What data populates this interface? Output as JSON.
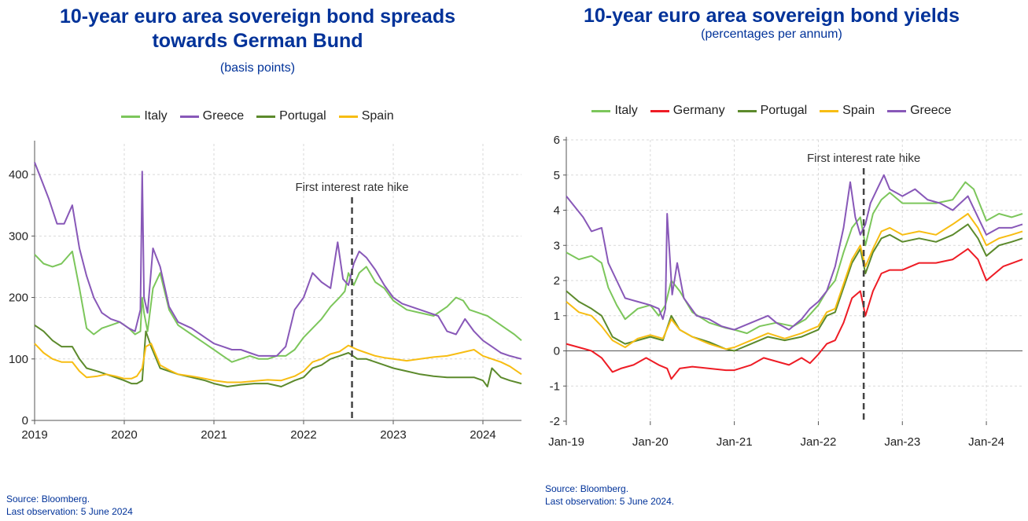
{
  "colors": {
    "Italy": "#7cc65b",
    "Greece": "#8858b8",
    "Portugal": "#5c8a2c",
    "Spain": "#f7bd13",
    "Germany": "#ee1c25"
  },
  "chart_data": [
    {
      "type": "line",
      "title": "10-year euro area sovereign bond spreads towards German Bund",
      "title_lines": [
        "10-year euro area sovereign bond spreads",
        "towards German Bund"
      ],
      "subtitle": "(basis points)",
      "xlabel": "",
      "ylabel": "",
      "xlim": [
        2019.0,
        2024.43
      ],
      "ylim": [
        0,
        450
      ],
      "yticks": [
        0,
        100,
        200,
        300,
        400
      ],
      "xticks": [
        {
          "value": 2019,
          "label": "2019"
        },
        {
          "value": 2020,
          "label": "2020"
        },
        {
          "value": 2021,
          "label": "2021"
        },
        {
          "value": 2022,
          "label": "2022"
        },
        {
          "value": 2023,
          "label": "2023"
        },
        {
          "value": 2024,
          "label": "2024"
        }
      ],
      "grid": true,
      "legend_position": "top",
      "annotation": {
        "x": 2022.54,
        "label": "First interest rate hike"
      },
      "series": [
        {
          "name": "Italy",
          "x": [
            2019.0,
            2019.1,
            2019.2,
            2019.3,
            2019.42,
            2019.5,
            2019.58,
            2019.66,
            2019.75,
            2019.85,
            2019.95,
            2020.05,
            2020.12,
            2020.18,
            2020.2,
            2020.22,
            2020.26,
            2020.32,
            2020.4,
            2020.5,
            2020.6,
            2020.75,
            2020.9,
            2021.0,
            2021.1,
            2021.2,
            2021.3,
            2021.4,
            2021.5,
            2021.6,
            2021.7,
            2021.8,
            2021.9,
            2022.0,
            2022.1,
            2022.2,
            2022.3,
            2022.4,
            2022.46,
            2022.5,
            2022.56,
            2022.62,
            2022.7,
            2022.8,
            2022.9,
            2023.0,
            2023.15,
            2023.3,
            2023.45,
            2023.6,
            2023.7,
            2023.78,
            2023.85,
            2023.95,
            2024.05,
            2024.15,
            2024.25,
            2024.35,
            2024.43
          ],
          "values": [
            270,
            255,
            250,
            255,
            275,
            215,
            150,
            140,
            150,
            155,
            160,
            150,
            140,
            145,
            200,
            175,
            145,
            215,
            240,
            180,
            155,
            140,
            125,
            115,
            105,
            95,
            100,
            105,
            100,
            100,
            105,
            105,
            115,
            135,
            150,
            165,
            185,
            200,
            210,
            240,
            220,
            240,
            250,
            225,
            215,
            195,
            180,
            175,
            170,
            185,
            200,
            195,
            180,
            175,
            170,
            160,
            150,
            140,
            130
          ]
        },
        {
          "name": "Greece",
          "x": [
            2019.0,
            2019.08,
            2019.16,
            2019.25,
            2019.33,
            2019.42,
            2019.5,
            2019.58,
            2019.66,
            2019.75,
            2019.85,
            2019.95,
            2020.05,
            2020.12,
            2020.18,
            2020.2,
            2020.22,
            2020.26,
            2020.32,
            2020.4,
            2020.5,
            2020.6,
            2020.75,
            2020.9,
            2021.0,
            2021.1,
            2021.2,
            2021.3,
            2021.4,
            2021.5,
            2021.6,
            2021.7,
            2021.8,
            2021.9,
            2022.0,
            2022.1,
            2022.2,
            2022.3,
            2022.38,
            2022.44,
            2022.5,
            2022.56,
            2022.62,
            2022.7,
            2022.8,
            2022.9,
            2023.0,
            2023.1,
            2023.2,
            2023.3,
            2023.4,
            2023.5,
            2023.6,
            2023.7,
            2023.8,
            2023.9,
            2024.0,
            2024.1,
            2024.2,
            2024.3,
            2024.43
          ],
          "values": [
            420,
            390,
            360,
            320,
            320,
            350,
            280,
            235,
            200,
            175,
            165,
            160,
            150,
            145,
            180,
            405,
            200,
            175,
            280,
            250,
            185,
            160,
            150,
            135,
            125,
            120,
            115,
            115,
            110,
            105,
            105,
            105,
            120,
            180,
            200,
            240,
            225,
            215,
            290,
            230,
            220,
            255,
            275,
            265,
            245,
            220,
            200,
            190,
            185,
            180,
            175,
            170,
            145,
            140,
            165,
            145,
            130,
            120,
            110,
            105,
            100
          ]
        },
        {
          "name": "Portugal",
          "x": [
            2019.0,
            2019.1,
            2019.2,
            2019.3,
            2019.42,
            2019.5,
            2019.58,
            2019.7,
            2019.8,
            2019.9,
            2020.0,
            2020.08,
            2020.14,
            2020.2,
            2020.24,
            2020.3,
            2020.4,
            2020.5,
            2020.6,
            2020.75,
            2020.9,
            2021.0,
            2021.15,
            2021.3,
            2021.45,
            2021.6,
            2021.75,
            2021.9,
            2022.0,
            2022.1,
            2022.2,
            2022.3,
            2022.4,
            2022.5,
            2022.6,
            2022.7,
            2022.8,
            2022.9,
            2023.0,
            2023.15,
            2023.3,
            2023.45,
            2023.6,
            2023.75,
            2023.9,
            2024.0,
            2024.05,
            2024.1,
            2024.2,
            2024.3,
            2024.43
          ],
          "values": [
            155,
            145,
            130,
            120,
            120,
            100,
            85,
            80,
            75,
            70,
            65,
            60,
            60,
            65,
            145,
            120,
            85,
            80,
            75,
            70,
            65,
            60,
            55,
            58,
            60,
            60,
            55,
            65,
            70,
            85,
            90,
            100,
            105,
            110,
            100,
            100,
            95,
            90,
            85,
            80,
            75,
            72,
            70,
            70,
            70,
            65,
            55,
            85,
            70,
            65,
            60
          ]
        },
        {
          "name": "Spain",
          "x": [
            2019.0,
            2019.1,
            2019.2,
            2019.3,
            2019.42,
            2019.5,
            2019.58,
            2019.7,
            2019.8,
            2019.9,
            2020.0,
            2020.08,
            2020.14,
            2020.2,
            2020.24,
            2020.3,
            2020.4,
            2020.5,
            2020.6,
            2020.75,
            2020.9,
            2021.0,
            2021.15,
            2021.3,
            2021.45,
            2021.6,
            2021.75,
            2021.9,
            2022.0,
            2022.1,
            2022.2,
            2022.3,
            2022.4,
            2022.5,
            2022.6,
            2022.7,
            2022.8,
            2022.9,
            2023.0,
            2023.15,
            2023.3,
            2023.45,
            2023.6,
            2023.75,
            2023.9,
            2024.0,
            2024.1,
            2024.2,
            2024.3,
            2024.43
          ],
          "values": [
            125,
            110,
            100,
            95,
            95,
            80,
            70,
            72,
            75,
            72,
            68,
            68,
            72,
            85,
            120,
            125,
            90,
            82,
            75,
            72,
            68,
            65,
            62,
            62,
            64,
            66,
            65,
            72,
            80,
            95,
            100,
            108,
            112,
            122,
            115,
            110,
            105,
            102,
            100,
            97,
            100,
            103,
            105,
            110,
            115,
            105,
            100,
            95,
            88,
            75
          ]
        }
      ]
    },
    {
      "type": "line",
      "title": "10-year euro area sovereign bond yields",
      "subtitle": "(percentages per annum)",
      "xlabel": "",
      "ylabel": "",
      "xlim": [
        2019.0,
        2024.43
      ],
      "ylim": [
        -2,
        6
      ],
      "yticks": [
        -2,
        -1,
        0,
        1,
        2,
        3,
        4,
        5,
        6
      ],
      "xticks": [
        {
          "value": 2019,
          "label": "Jan-19"
        },
        {
          "value": 2020,
          "label": "Jan-20"
        },
        {
          "value": 2021,
          "label": "Jan-21"
        },
        {
          "value": 2022,
          "label": "Jan-22"
        },
        {
          "value": 2023,
          "label": "Jan-23"
        },
        {
          "value": 2024,
          "label": "Jan-24"
        }
      ],
      "grid": true,
      "legend_position": "top",
      "annotation": {
        "x": 2022.54,
        "label": "First interest rate hike"
      },
      "series": [
        {
          "name": "Italy",
          "x": [
            2019.0,
            2019.15,
            2019.3,
            2019.42,
            2019.5,
            2019.6,
            2019.7,
            2019.85,
            2020.0,
            2020.1,
            2020.18,
            2020.25,
            2020.35,
            2020.5,
            2020.7,
            2020.9,
            2021.0,
            2021.15,
            2021.3,
            2021.5,
            2021.7,
            2021.85,
            2022.0,
            2022.1,
            2022.2,
            2022.3,
            2022.4,
            2022.5,
            2022.56,
            2022.65,
            2022.75,
            2022.85,
            2023.0,
            2023.2,
            2023.4,
            2023.6,
            2023.75,
            2023.85,
            2024.0,
            2024.15,
            2024.3,
            2024.43
          ],
          "values": [
            2.8,
            2.6,
            2.7,
            2.5,
            1.8,
            1.3,
            0.9,
            1.2,
            1.3,
            1.0,
            1.3,
            2.0,
            1.7,
            1.1,
            0.8,
            0.65,
            0.6,
            0.5,
            0.7,
            0.8,
            0.7,
            0.9,
            1.3,
            1.7,
            2.0,
            2.8,
            3.5,
            3.8,
            3.0,
            3.9,
            4.3,
            4.5,
            4.2,
            4.2,
            4.2,
            4.3,
            4.8,
            4.6,
            3.7,
            3.9,
            3.8,
            3.9
          ]
        },
        {
          "name": "Germany",
          "x": [
            2019.0,
            2019.15,
            2019.3,
            2019.42,
            2019.55,
            2019.65,
            2019.8,
            2019.95,
            2020.1,
            2020.2,
            2020.25,
            2020.35,
            2020.5,
            2020.7,
            2020.9,
            2021.0,
            2021.2,
            2021.35,
            2021.5,
            2021.65,
            2021.8,
            2021.9,
            2022.0,
            2022.1,
            2022.2,
            2022.3,
            2022.4,
            2022.5,
            2022.56,
            2022.65,
            2022.75,
            2022.85,
            2023.0,
            2023.2,
            2023.4,
            2023.6,
            2023.78,
            2023.9,
            2024.0,
            2024.2,
            2024.43
          ],
          "values": [
            0.2,
            0.1,
            0.0,
            -0.2,
            -0.6,
            -0.5,
            -0.4,
            -0.2,
            -0.4,
            -0.5,
            -0.8,
            -0.5,
            -0.45,
            -0.5,
            -0.55,
            -0.55,
            -0.4,
            -0.2,
            -0.3,
            -0.4,
            -0.2,
            -0.35,
            -0.1,
            0.2,
            0.3,
            0.8,
            1.5,
            1.7,
            1.0,
            1.7,
            2.2,
            2.3,
            2.3,
            2.5,
            2.5,
            2.6,
            2.9,
            2.6,
            2.0,
            2.4,
            2.6
          ]
        },
        {
          "name": "Portugal",
          "x": [
            2019.0,
            2019.15,
            2019.3,
            2019.42,
            2019.55,
            2019.7,
            2019.85,
            2020.0,
            2020.15,
            2020.25,
            2020.35,
            2020.5,
            2020.7,
            2020.9,
            2021.0,
            2021.2,
            2021.4,
            2021.6,
            2021.8,
            2021.9,
            2022.0,
            2022.1,
            2022.2,
            2022.3,
            2022.4,
            2022.5,
            2022.56,
            2022.65,
            2022.75,
            2022.85,
            2023.0,
            2023.2,
            2023.4,
            2023.6,
            2023.78,
            2023.9,
            2024.0,
            2024.15,
            2024.3,
            2024.43
          ],
          "values": [
            1.7,
            1.4,
            1.2,
            1.0,
            0.4,
            0.2,
            0.3,
            0.4,
            0.3,
            1.0,
            0.6,
            0.4,
            0.25,
            0.05,
            0.0,
            0.2,
            0.4,
            0.3,
            0.4,
            0.5,
            0.6,
            1.0,
            1.1,
            1.8,
            2.5,
            2.9,
            2.2,
            2.8,
            3.2,
            3.3,
            3.1,
            3.2,
            3.1,
            3.3,
            3.6,
            3.2,
            2.7,
            3.0,
            3.1,
            3.2
          ]
        },
        {
          "name": "Spain",
          "x": [
            2019.0,
            2019.15,
            2019.3,
            2019.42,
            2019.55,
            2019.7,
            2019.85,
            2020.0,
            2020.15,
            2020.25,
            2020.35,
            2020.5,
            2020.7,
            2020.9,
            2021.0,
            2021.2,
            2021.4,
            2021.6,
            2021.8,
            2021.9,
            2022.0,
            2022.1,
            2022.2,
            2022.3,
            2022.4,
            2022.5,
            2022.56,
            2022.65,
            2022.75,
            2022.85,
            2023.0,
            2023.2,
            2023.4,
            2023.6,
            2023.78,
            2023.9,
            2024.0,
            2024.15,
            2024.3,
            2024.43
          ],
          "values": [
            1.4,
            1.1,
            1.0,
            0.7,
            0.3,
            0.1,
            0.35,
            0.45,
            0.35,
            0.9,
            0.6,
            0.4,
            0.2,
            0.05,
            0.1,
            0.3,
            0.5,
            0.35,
            0.5,
            0.6,
            0.7,
            1.1,
            1.2,
            1.9,
            2.6,
            3.0,
            2.4,
            2.9,
            3.4,
            3.5,
            3.3,
            3.4,
            3.3,
            3.6,
            3.9,
            3.5,
            3.0,
            3.2,
            3.3,
            3.4
          ]
        },
        {
          "name": "Greece",
          "x": [
            2019.0,
            2019.1,
            2019.2,
            2019.3,
            2019.42,
            2019.5,
            2019.6,
            2019.7,
            2019.85,
            2020.0,
            2020.1,
            2020.15,
            2020.18,
            2020.2,
            2020.26,
            2020.32,
            2020.4,
            2020.55,
            2020.7,
            2020.85,
            2021.0,
            2021.2,
            2021.4,
            2021.5,
            2021.65,
            2021.8,
            2021.9,
            2022.0,
            2022.1,
            2022.2,
            2022.3,
            2022.38,
            2022.44,
            2022.5,
            2022.56,
            2022.62,
            2022.7,
            2022.78,
            2022.85,
            2023.0,
            2023.15,
            2023.3,
            2023.45,
            2023.6,
            2023.78,
            2023.9,
            2024.0,
            2024.15,
            2024.3,
            2024.43
          ],
          "values": [
            4.4,
            4.1,
            3.8,
            3.4,
            3.5,
            2.5,
            2.0,
            1.5,
            1.4,
            1.3,
            1.2,
            0.9,
            1.2,
            3.9,
            1.6,
            2.5,
            1.5,
            1.0,
            0.9,
            0.7,
            0.6,
            0.8,
            1.0,
            0.8,
            0.6,
            0.9,
            1.2,
            1.4,
            1.7,
            2.4,
            3.5,
            4.8,
            3.8,
            3.3,
            3.6,
            4.2,
            4.6,
            5.0,
            4.6,
            4.4,
            4.6,
            4.3,
            4.2,
            4.0,
            4.4,
            3.8,
            3.3,
            3.5,
            3.5,
            3.6
          ]
        }
      ]
    }
  ],
  "left": {
    "source_line1": "Source: Bloomberg.",
    "source_line2": "Last observation: 5 June 2024"
  },
  "right": {
    "source_line1": "Source: Bloomberg.",
    "source_line2": "Last observation: 5 June 2024."
  }
}
